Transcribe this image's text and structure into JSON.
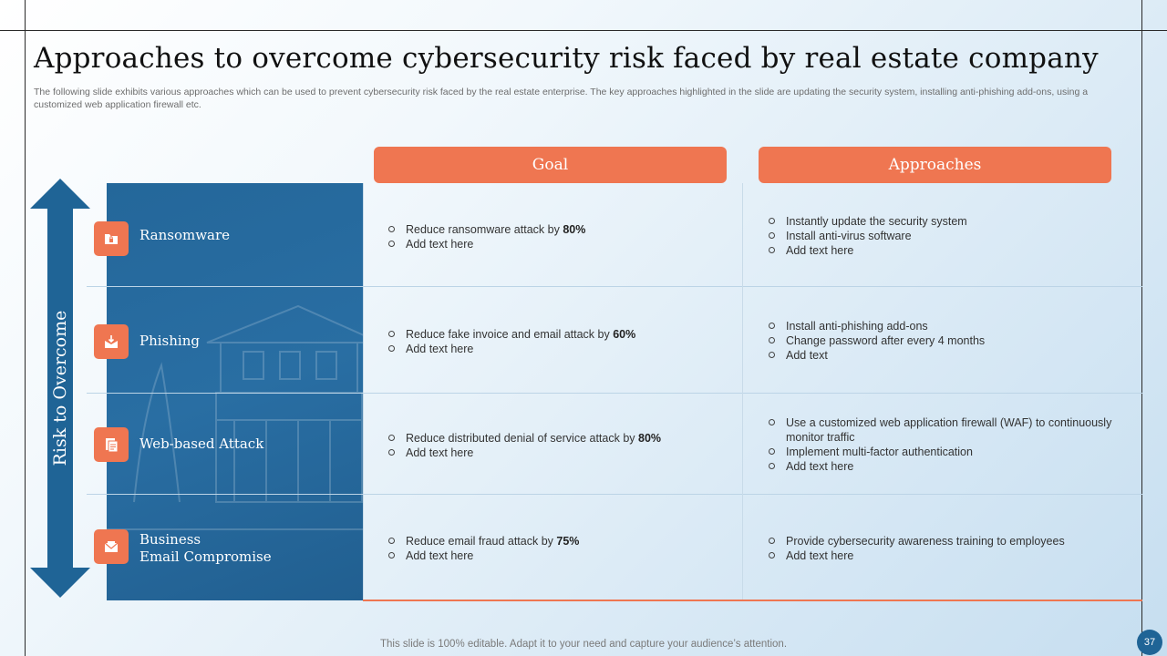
{
  "slide": {
    "title": "Approaches to overcome cybersecurity risk faced by real estate company",
    "subtitle": "The following slide exhibits various approaches which can be used to prevent cybersecurity risk faced by the real estate enterprise. The key approaches highlighted in the slide are updating the security system, installing anti-phishing add-ons, using a customized web application firewall etc.",
    "footer": "This slide is 100% editable. Adapt it to your need and capture your audience’s attention.",
    "page_number": "37"
  },
  "table": {
    "goal_header": "Goal",
    "approaches_header": "Approaches",
    "side_label": "Risk to Overcome",
    "accent_color": "#ef7651",
    "panel_color": "#24679a",
    "rows": [
      {
        "risk": "Ransomware",
        "icon": "folder-lock-icon",
        "goal_prefix": "Reduce ransomware  attack by ",
        "goal_value": "80%",
        "goal_extra": "Add text here",
        "approaches": [
          "Instantly update the security system",
          "Install anti-virus  software",
          "Add text here"
        ]
      },
      {
        "risk": "Phishing",
        "icon": "phishing-mail-icon",
        "goal_prefix": "Reduce fake invoice  and email attack by ",
        "goal_value": "60%",
        "goal_extra": "Add text here",
        "approaches": [
          "Install anti-phishing add-ons",
          "Change password after every 4 months",
          "Add text"
        ]
      },
      {
        "risk": "Web-based Attack",
        "icon": "web-document-icon",
        "goal_prefix": "Reduce distributed denial of service attack by ",
        "goal_value": "80%",
        "goal_extra": "Add text here",
        "approaches": [
          "Use a customized web application firewall (WAF) to continuously monitor traffic",
          "Implement  multi-factor authentication",
          "Add text here"
        ]
      },
      {
        "risk_line1": "Business",
        "risk_line2": "Email Compromise",
        "icon": "envelope-icon",
        "goal_prefix": "Reduce email fraud  attack by ",
        "goal_value": "75%",
        "goal_extra": "Add text here",
        "approaches": [
          "Provide  cybersecurity awareness training to employees",
          "Add text here"
        ]
      }
    ]
  }
}
